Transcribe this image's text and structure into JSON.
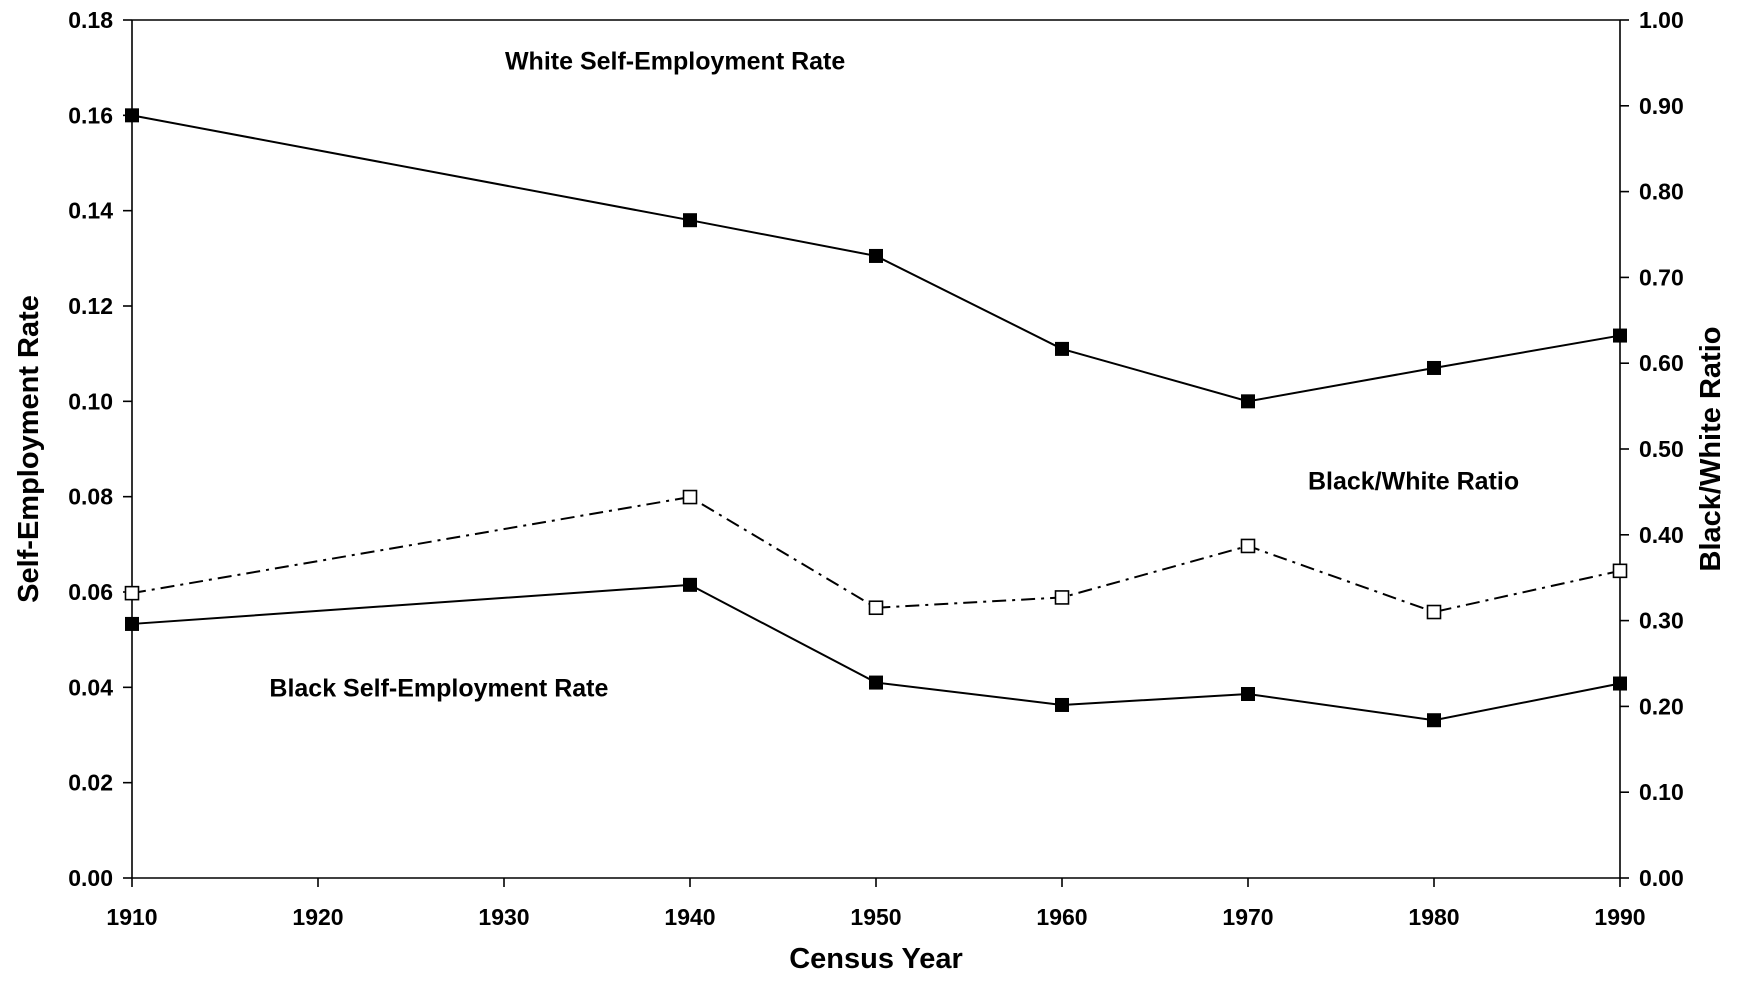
{
  "chart_data": {
    "type": "line",
    "x": [
      1910,
      1940,
      1950,
      1960,
      1970,
      1980,
      1990
    ],
    "xlabel": "Census Year",
    "ylabel": "Self-Employment Rate",
    "y2label": "Black/White Ratio",
    "xlim": [
      1910,
      1990
    ],
    "ylim": [
      0,
      0.18
    ],
    "y2lim": [
      0,
      1.0
    ],
    "x_ticks": [
      "1910",
      "1920",
      "1930",
      "1940",
      "1950",
      "1960",
      "1970",
      "1980",
      "1990"
    ],
    "y_ticks": [
      "0.00",
      "0.02",
      "0.04",
      "0.06",
      "0.08",
      "0.10",
      "0.12",
      "0.14",
      "0.16",
      "0.18"
    ],
    "y2_ticks": [
      "0.00",
      "0.10",
      "0.20",
      "0.30",
      "0.40",
      "0.50",
      "0.60",
      "0.70",
      "0.80",
      "0.90",
      "1.00"
    ],
    "grid": false,
    "legend": "none (series labeled by on-chart annotations)",
    "series": [
      {
        "name": "White Self-Employment Rate",
        "axis": "left",
        "style": "solid line, filled square markers",
        "values": [
          0.16,
          0.138,
          0.1305,
          0.111,
          0.1,
          0.107,
          0.1138
        ]
      },
      {
        "name": "Black Self-Employment Rate",
        "axis": "left",
        "style": "solid line, filled square markers",
        "values": [
          0.0533,
          0.0615,
          0.041,
          0.0363,
          0.0386,
          0.0331,
          0.0408
        ]
      },
      {
        "name": "Black/White Ratio",
        "axis": "right",
        "style": "dash-dot line, open square markers",
        "values": [
          0.332,
          0.444,
          0.315,
          0.327,
          0.387,
          0.31,
          0.358
        ]
      }
    ],
    "annotations": {
      "white": "White Self-Employment Rate",
      "black": "Black Self-Employment Rate",
      "ratio": "Black/White Ratio"
    },
    "colors": {
      "line": "#000000",
      "marker_fill": "#000000",
      "open_marker_fill": "#ffffff",
      "background": "#ffffff"
    }
  }
}
